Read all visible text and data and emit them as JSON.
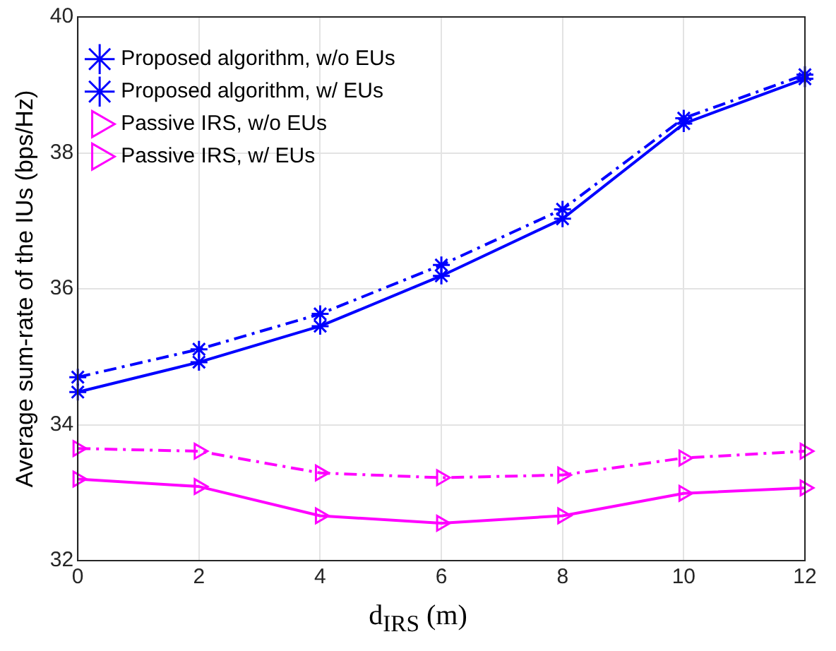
{
  "chart_data": {
    "type": "line",
    "xlabel": "d$_{IRS}$ (m)",
    "ylabel": "Average sum-rate of the IUs (bps/Hz)",
    "x": [
      0,
      2,
      4,
      6,
      8,
      10,
      12
    ],
    "series": [
      {
        "name": "Proposed algorithm, w/o EUs",
        "color": "#0000ff",
        "marker": "cross",
        "line_style": "dashed",
        "values": [
          34.7,
          35.11,
          35.63,
          36.35,
          37.17,
          38.51,
          39.15
        ]
      },
      {
        "name": "Proposed algorithm, w/ EUs",
        "color": "#0000ff",
        "marker": "cross",
        "line_style": "solid",
        "values": [
          34.48,
          34.92,
          35.45,
          36.19,
          37.03,
          38.43,
          39.09
        ]
      },
      {
        "name": "Passive IRS, w/o EUs",
        "color": "#ff00ff",
        "marker": "triangle",
        "line_style": "dashed",
        "values": [
          33.65,
          33.61,
          33.29,
          33.22,
          33.26,
          33.51,
          33.61
        ]
      },
      {
        "name": "Passive IRS, w/ EUs",
        "color": "#ff00ff",
        "marker": "triangle",
        "line_style": "solid",
        "values": [
          33.2,
          33.09,
          32.66,
          32.55,
          32.66,
          32.99,
          33.07
        ]
      }
    ],
    "xlim": [
      0,
      12
    ],
    "xticks": [
      0,
      2,
      4,
      6,
      8,
      10,
      12
    ],
    "ylim": [
      32,
      40
    ],
    "yticks": [
      32,
      34,
      36,
      38,
      40
    ],
    "grid": true,
    "legend": "top left"
  }
}
